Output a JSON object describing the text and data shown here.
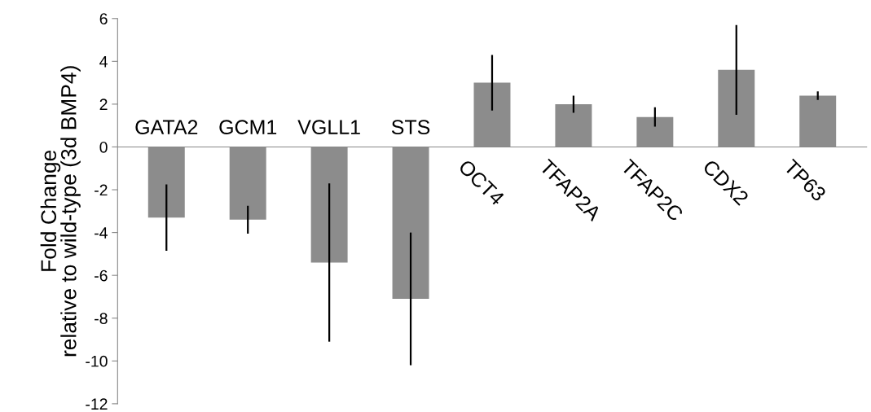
{
  "chart_data": {
    "type": "bar",
    "ylabel": "Fold Change\nrelative to wild-type (3d BMP4)",
    "categories": [
      "GATA2",
      "GCM1",
      "VGLL1",
      "STS",
      "OCT4",
      "TFAP2A",
      "TFAP2C",
      "CDX2",
      "TP63"
    ],
    "values": [
      -3.3,
      -3.4,
      -5.4,
      -7.1,
      3.0,
      2.0,
      1.4,
      3.6,
      2.4
    ],
    "errors": [
      1.55,
      0.65,
      3.7,
      3.1,
      1.3,
      0.4,
      0.45,
      2.1,
      0.2
    ],
    "color": "#8c8c8c",
    "ylim": [
      -12,
      6
    ],
    "yticks": [
      -12,
      -10,
      -8,
      -6,
      -4,
      -2,
      0,
      2,
      4,
      6
    ],
    "grid": false,
    "legend": false
  }
}
